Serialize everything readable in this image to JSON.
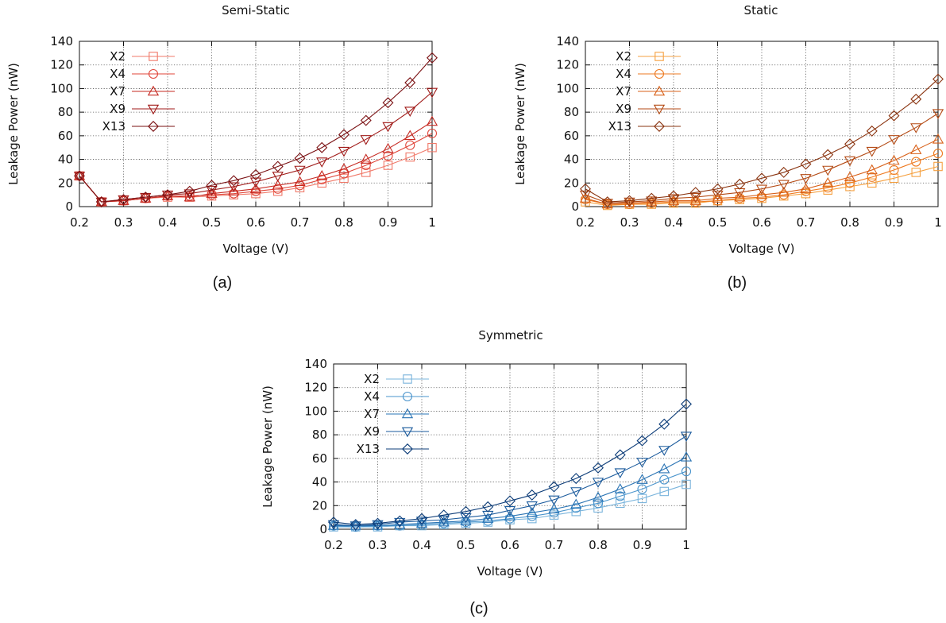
{
  "chart_data": [
    {
      "type": "line",
      "title": "Semi-Static",
      "caption": "(a)",
      "xlabel": "Voltage (V)",
      "ylabel": "Leakage Power (nW)",
      "xlim": [
        0.2,
        1.0
      ],
      "ylim": [
        0,
        140
      ],
      "grid": true,
      "legend_position": "top-left",
      "x": [
        0.2,
        0.25,
        0.3,
        0.35,
        0.4,
        0.45,
        0.5,
        0.55,
        0.6,
        0.65,
        0.7,
        0.75,
        0.8,
        0.85,
        0.9,
        0.95,
        1.0
      ],
      "series": [
        {
          "name": "X2",
          "marker": "square",
          "color": "#f07a6a",
          "values": [
            26,
            4,
            5,
            7,
            8,
            8,
            9,
            10,
            11,
            13,
            16,
            20,
            24,
            29,
            35,
            42,
            50
          ]
        },
        {
          "name": "X4",
          "marker": "circle",
          "color": "#e0463a",
          "values": [
            26,
            4,
            5,
            7,
            9,
            9,
            10,
            11,
            13,
            15,
            18,
            23,
            28,
            35,
            43,
            52,
            62
          ]
        },
        {
          "name": "X7",
          "marker": "triangle-up",
          "color": "#c62a22",
          "values": [
            26,
            4,
            5,
            7,
            9,
            8,
            11,
            13,
            15,
            18,
            21,
            26,
            32,
            40,
            49,
            60,
            72
          ]
        },
        {
          "name": "X9",
          "marker": "triangle-down",
          "color": "#a01a18",
          "values": [
            26,
            4,
            6,
            8,
            10,
            11,
            14,
            17,
            21,
            26,
            31,
            38,
            47,
            57,
            68,
            81,
            97
          ]
        },
        {
          "name": "X13",
          "marker": "diamond",
          "color": "#7a1012",
          "values": [
            26,
            4,
            6,
            8,
            10,
            13,
            18,
            22,
            27,
            34,
            41,
            50,
            61,
            73,
            88,
            105,
            126
          ]
        }
      ]
    },
    {
      "type": "line",
      "title": "Static",
      "caption": "(b)",
      "xlabel": "Voltage (V)",
      "ylabel": "Leakage Power (nW)",
      "xlim": [
        0.2,
        1.0
      ],
      "ylim": [
        0,
        140
      ],
      "grid": true,
      "legend_position": "top-left",
      "x": [
        0.2,
        0.25,
        0.3,
        0.35,
        0.4,
        0.45,
        0.5,
        0.55,
        0.6,
        0.65,
        0.7,
        0.75,
        0.8,
        0.85,
        0.9,
        0.95,
        1.0
      ],
      "series": [
        {
          "name": "X2",
          "marker": "square",
          "color": "#f5a040",
          "values": [
            4,
            1,
            2,
            2,
            3,
            3,
            5,
            6,
            7,
            9,
            11,
            14,
            17,
            20,
            24,
            29,
            34
          ]
        },
        {
          "name": "X4",
          "marker": "circle",
          "color": "#ee7a20",
          "values": [
            6,
            2,
            2,
            3,
            4,
            4,
            5,
            7,
            8,
            10,
            13,
            16,
            20,
            25,
            31,
            38,
            45
          ]
        },
        {
          "name": "X7",
          "marker": "triangle-up",
          "color": "#d86018",
          "values": [
            7,
            2,
            3,
            4,
            5,
            5,
            7,
            8,
            10,
            12,
            15,
            20,
            25,
            31,
            39,
            48,
            57
          ]
        },
        {
          "name": "X9",
          "marker": "triangle-down",
          "color": "#b44a14",
          "values": [
            10,
            3,
            4,
            5,
            7,
            8,
            10,
            12,
            15,
            19,
            24,
            31,
            39,
            47,
            57,
            67,
            79
          ]
        },
        {
          "name": "X13",
          "marker": "diamond",
          "color": "#8a3410",
          "values": [
            15,
            4,
            5,
            7,
            9,
            12,
            15,
            19,
            24,
            29,
            36,
            44,
            53,
            64,
            77,
            91,
            108
          ]
        }
      ]
    },
    {
      "type": "line",
      "title": "Symmetric",
      "caption": "(c)",
      "xlabel": "Voltage (V)",
      "ylabel": "Leakage Power (nW)",
      "xlim": [
        0.2,
        1.0
      ],
      "ylim": [
        0,
        140
      ],
      "grid": true,
      "legend_position": "top-left",
      "x": [
        0.2,
        0.25,
        0.3,
        0.35,
        0.4,
        0.45,
        0.5,
        0.55,
        0.6,
        0.65,
        0.7,
        0.75,
        0.8,
        0.85,
        0.9,
        0.95,
        1.0
      ],
      "series": [
        {
          "name": "X2",
          "marker": "square",
          "color": "#7ab4dc",
          "values": [
            2,
            2,
            2,
            3,
            3,
            4,
            5,
            6,
            8,
            9,
            12,
            15,
            18,
            22,
            26,
            32,
            38
          ]
        },
        {
          "name": "X4",
          "marker": "circle",
          "color": "#4a94cc",
          "values": [
            3,
            2,
            3,
            3,
            4,
            5,
            6,
            7,
            9,
            11,
            14,
            18,
            22,
            28,
            34,
            42,
            49
          ]
        },
        {
          "name": "X7",
          "marker": "triangle-up",
          "color": "#2a74b4",
          "values": [
            3,
            3,
            3,
            4,
            5,
            6,
            7,
            9,
            11,
            14,
            17,
            21,
            27,
            34,
            42,
            51,
            61
          ]
        },
        {
          "name": "X9",
          "marker": "triangle-down",
          "color": "#1a5a9c",
          "values": [
            4,
            3,
            4,
            6,
            7,
            8,
            10,
            12,
            16,
            20,
            25,
            32,
            40,
            48,
            57,
            67,
            79
          ]
        },
        {
          "name": "X13",
          "marker": "diamond",
          "color": "#0c3c78",
          "values": [
            6,
            4,
            5,
            7,
            9,
            12,
            15,
            19,
            24,
            29,
            36,
            43,
            52,
            63,
            75,
            89,
            106
          ]
        }
      ]
    }
  ]
}
